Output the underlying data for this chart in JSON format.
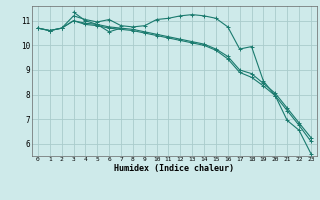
{
  "xlabel": "Humidex (Indice chaleur)",
  "bg_color": "#ceeaea",
  "grid_color": "#aacccc",
  "line_color": "#1a7a6e",
  "xlim": [
    -0.5,
    23.5
  ],
  "ylim": [
    5.5,
    11.6
  ],
  "yticks": [
    6,
    7,
    8,
    9,
    10,
    11
  ],
  "xticks": [
    0,
    1,
    2,
    3,
    4,
    5,
    6,
    7,
    8,
    9,
    10,
    11,
    12,
    13,
    14,
    15,
    16,
    17,
    18,
    19,
    20,
    21,
    22,
    23
  ],
  "series": [
    {
      "x": [
        0,
        1,
        2,
        3,
        4,
        5,
        6,
        7,
        8,
        9,
        10,
        11,
        12,
        13,
        14,
        15,
        16,
        17,
        18,
        19,
        20,
        21,
        22,
        23
      ],
      "y": [
        10.7,
        10.6,
        10.7,
        11.2,
        11.05,
        10.95,
        11.05,
        10.8,
        10.75,
        10.8,
        11.05,
        11.1,
        11.2,
        11.25,
        11.2,
        11.1,
        10.75,
        9.85,
        9.95,
        8.55,
        7.95,
        6.95,
        6.55,
        5.6
      ]
    },
    {
      "x": [
        0,
        1,
        2,
        3,
        4,
        5,
        6,
        7,
        8,
        9,
        10,
        11,
        12,
        13,
        14,
        15,
        16,
        17,
        18,
        19,
        20,
        21,
        22,
        23
      ],
      "y": [
        10.7,
        10.6,
        10.7,
        11.0,
        10.9,
        10.85,
        10.75,
        10.7,
        10.65,
        10.55,
        10.45,
        10.35,
        10.25,
        10.15,
        10.05,
        9.85,
        9.55,
        9.0,
        8.85,
        8.45,
        8.05,
        7.45,
        6.85,
        6.25
      ]
    },
    {
      "x": [
        0,
        1,
        2,
        3,
        4,
        5,
        6,
        7,
        8,
        9,
        10,
        11,
        12,
        13,
        14,
        15,
        16,
        17,
        18,
        19,
        20,
        21,
        22,
        23
      ],
      "y": [
        10.7,
        10.6,
        10.7,
        11.0,
        10.85,
        10.8,
        10.7,
        10.65,
        10.6,
        10.5,
        10.4,
        10.3,
        10.2,
        10.1,
        10.0,
        9.8,
        9.45,
        8.9,
        8.7,
        8.35,
        7.95,
        7.35,
        6.75,
        6.1
      ]
    },
    {
      "x": [
        3,
        4,
        5,
        6,
        7
      ],
      "y": [
        11.35,
        11.0,
        10.85,
        10.55,
        10.7
      ]
    }
  ]
}
